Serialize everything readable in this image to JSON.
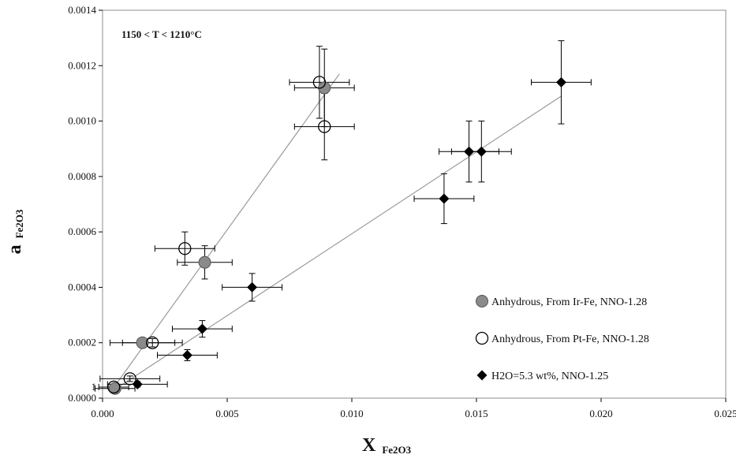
{
  "chart_data": {
    "type": "scatter",
    "annotation": "1150 < T < 1210°C",
    "xlabel": {
      "main": "X",
      "sub": "Fe2O3"
    },
    "ylabel": {
      "main": "a",
      "sub": "Fe2O3"
    },
    "xlim": [
      0,
      0.025
    ],
    "ylim": [
      0,
      0.0014
    ],
    "x_ticks": [
      "0.000",
      "0.005",
      "0.010",
      "0.015",
      "0.020",
      "0.025"
    ],
    "x_tick_values": [
      0,
      0.005,
      0.01,
      0.015,
      0.02,
      0.025
    ],
    "y_ticks": [
      "0.0000",
      "0.0002",
      "0.0004",
      "0.0006",
      "0.0008",
      "0.0010",
      "0.0012",
      "0.0014"
    ],
    "y_tick_values": [
      0,
      0.0002,
      0.0004,
      0.0006,
      0.0008,
      0.001,
      0.0012,
      0.0014
    ],
    "extra_y_label": "1",
    "extra_y_label_value": 4e-05,
    "grid": false,
    "legend_position": "bottom-right",
    "colors": {
      "gray_fill": "#8a8a8a",
      "black": "#000000",
      "frame": "#8c8c8c",
      "fit_line": "#9a9a9a"
    },
    "series": [
      {
        "name": "Anhydrous, From Ir-Fe, NNO-1.28",
        "marker": "gray-circle",
        "points": [
          {
            "x": 0.0005,
            "y": 3.5e-05,
            "xerr": 0.0008,
            "yerr": 1e-05
          },
          {
            "x": 0.0016,
            "y": 0.0002,
            "xerr": 0.0013,
            "yerr": 1.5e-05
          },
          {
            "x": 0.0041,
            "y": 0.00049,
            "xerr": 0.0011,
            "yerr": 6e-05
          },
          {
            "x": 0.0089,
            "y": 0.00112,
            "xerr": 0.0012,
            "yerr": 0.00014
          }
        ]
      },
      {
        "name": "Anhydrous, From Pt-Fe, NNO-1.28",
        "marker": "open-circle",
        "points": [
          {
            "x": 0.00045,
            "y": 4e-05,
            "xerr": 0.0006,
            "yerr": 1e-05
          },
          {
            "x": 0.0011,
            "y": 7e-05,
            "xerr": 0.0012,
            "yerr": 1e-05
          },
          {
            "x": 0.002,
            "y": 0.0002,
            "xerr": 0.0012,
            "yerr": 1.5e-05
          },
          {
            "x": 0.0033,
            "y": 0.00054,
            "xerr": 0.0012,
            "yerr": 6e-05
          },
          {
            "x": 0.0087,
            "y": 0.00114,
            "xerr": 0.0012,
            "yerr": 0.00013
          },
          {
            "x": 0.0089,
            "y": 0.00098,
            "xerr": 0.0012,
            "yerr": 0.00012
          }
        ]
      },
      {
        "name": "H2O=5.3 wt%, NNO-1.25",
        "marker": "black-diamond",
        "points": [
          {
            "x": 0.0014,
            "y": 5e-05,
            "xerr": 0.0012,
            "yerr": 1e-05
          },
          {
            "x": 0.0034,
            "y": 0.000155,
            "xerr": 0.0012,
            "yerr": 2e-05
          },
          {
            "x": 0.004,
            "y": 0.00025,
            "xerr": 0.0012,
            "yerr": 3e-05
          },
          {
            "x": 0.006,
            "y": 0.0004,
            "xerr": 0.0012,
            "yerr": 5e-05
          },
          {
            "x": 0.0137,
            "y": 0.00072,
            "xerr": 0.0012,
            "yerr": 9e-05
          },
          {
            "x": 0.0147,
            "y": 0.00089,
            "xerr": 0.0012,
            "yerr": 0.00011
          },
          {
            "x": 0.0152,
            "y": 0.00089,
            "xerr": 0.0012,
            "yerr": 0.00011
          },
          {
            "x": 0.0184,
            "y": 0.00114,
            "xerr": 0.0012,
            "yerr": 0.00015
          }
        ]
      }
    ],
    "fit_lines": [
      {
        "x": [
          0.0003,
          0.0095
        ],
        "y": [
          2e-05,
          0.00117
        ]
      },
      {
        "x": [
          0.0003,
          0.0184
        ],
        "y": [
          2e-05,
          0.00109
        ]
      }
    ]
  }
}
